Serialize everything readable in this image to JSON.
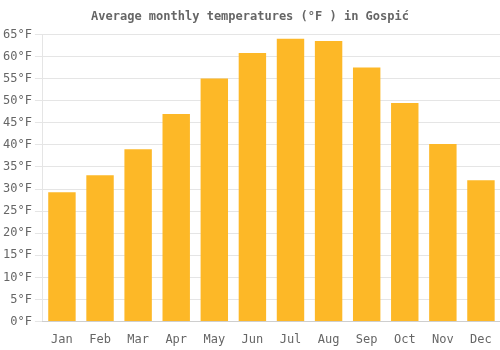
{
  "chart_data": {
    "type": "bar",
    "title": "Average monthly temperatures (°F ) in Gospić",
    "categories": [
      "Jan",
      "Feb",
      "Mar",
      "Apr",
      "May",
      "Jun",
      "Jul",
      "Aug",
      "Sep",
      "Oct",
      "Nov",
      "Dec"
    ],
    "values": [
      29.3,
      33.1,
      39.0,
      47.0,
      55.0,
      60.8,
      64.0,
      63.5,
      57.5,
      49.5,
      40.2,
      32.0
    ],
    "color": "#FDB827",
    "ylim": [
      0,
      65
    ],
    "yticks": [
      {
        "value": 0,
        "label": "0°F"
      },
      {
        "value": 5,
        "label": "5°F"
      },
      {
        "value": 10,
        "label": "10°F"
      },
      {
        "value": 15,
        "label": "15°F"
      },
      {
        "value": 20,
        "label": "20°F"
      },
      {
        "value": 25,
        "label": "25°F"
      },
      {
        "value": 30,
        "label": "30°F"
      },
      {
        "value": 35,
        "label": "35°F"
      },
      {
        "value": 40,
        "label": "40°F"
      },
      {
        "value": 45,
        "label": "45°F"
      },
      {
        "value": 50,
        "label": "50°F"
      },
      {
        "value": 55,
        "label": "55°F"
      },
      {
        "value": 60,
        "label": "60°F"
      },
      {
        "value": 65,
        "label": "65°F"
      }
    ],
    "grid": true
  }
}
